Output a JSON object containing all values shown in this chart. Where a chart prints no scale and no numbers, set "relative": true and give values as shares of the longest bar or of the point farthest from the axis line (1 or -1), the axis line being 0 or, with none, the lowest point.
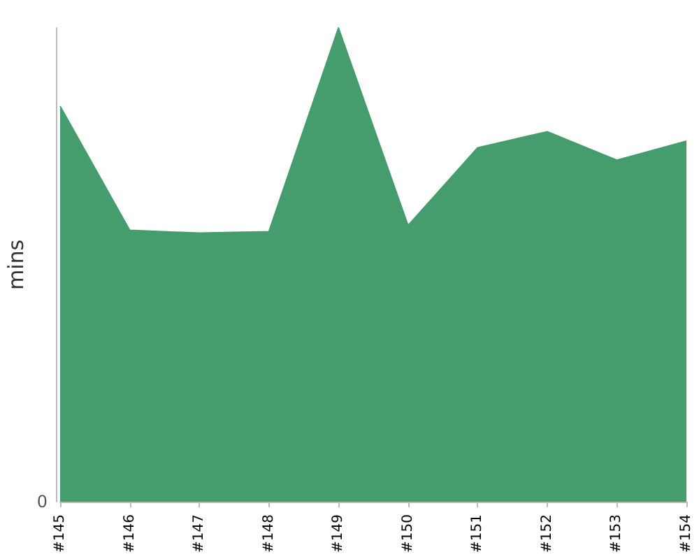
{
  "chart_data": {
    "type": "area",
    "ylabel": "mins",
    "relative": true,
    "annotations": [
      "0"
    ],
    "categories": [
      "#145",
      "#146",
      "#147",
      "#148",
      "#149",
      "#150",
      "#151",
      "#152",
      "#153",
      "#154"
    ],
    "series": [
      {
        "color": "#459c6d",
        "values": [
          0.835,
          0.573,
          0.567,
          0.57,
          1,
          0.583,
          0.747,
          0.781,
          0.721,
          0.761
        ]
      }
    ]
  }
}
